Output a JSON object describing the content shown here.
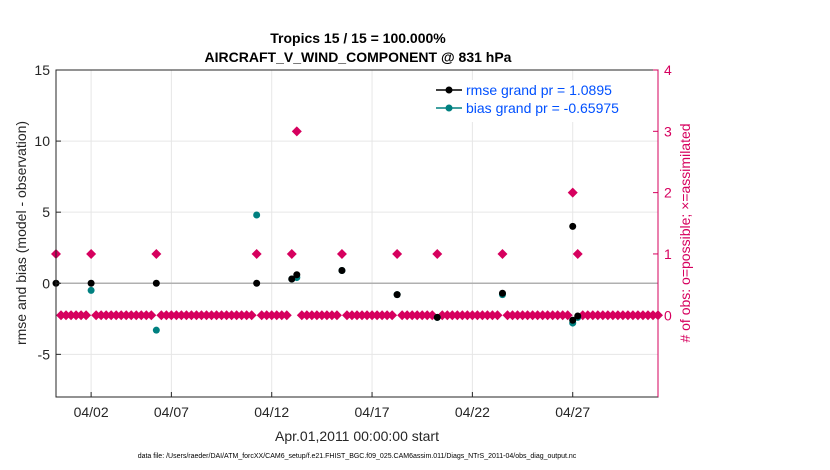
{
  "chart_data": {
    "type": "scatter",
    "title": "Tropics 15 / 15 = 100.000%",
    "subtitle": "AIRCRAFT_V_WIND_COMPONENT @ 831 hPa",
    "xlabel": "Apr.01,2011 00:00:00 start",
    "ylabel": "rmse and bias (model - observation)",
    "y2label": "# of obs: o=possible; ×=assimilated",
    "xlim": [
      0,
      30
    ],
    "ylim": [
      -8,
      15
    ],
    "y2lim": [
      -1.3333,
      4
    ],
    "x_ticks": [
      1.75,
      5.75,
      10.75,
      15.75,
      20.75,
      25.75
    ],
    "x_tick_labels": [
      "04/02",
      "04/07",
      "04/12",
      "04/17",
      "04/22",
      "04/27"
    ],
    "y_ticks": [
      -5,
      0,
      5,
      10,
      15
    ],
    "y_tick_labels": [
      "-5",
      "0",
      "5",
      "10",
      "15"
    ],
    "y2_ticks": [
      0,
      1,
      2,
      3,
      4
    ],
    "y2_tick_labels": [
      "0",
      "1",
      "2",
      "3",
      "4"
    ],
    "legend": [
      {
        "name": "rmse grand pr = 1.0895",
        "color": "#000000"
      },
      {
        "name": "bias grand pr = -0.65975",
        "color": "#008080"
      }
    ],
    "series": [
      {
        "name": "rmse",
        "color": "#000000",
        "points": [
          [
            0.0,
            0.0
          ],
          [
            1.75,
            0.0
          ],
          [
            5.0,
            0.0
          ],
          [
            10.0,
            0.0
          ],
          [
            11.75,
            0.3
          ],
          [
            12.0,
            0.6
          ],
          [
            14.25,
            0.9
          ],
          [
            17.0,
            -0.8
          ],
          [
            19.0,
            -2.4
          ],
          [
            22.25,
            -0.7
          ],
          [
            25.75,
            4.0
          ],
          [
            25.75,
            -2.6
          ],
          [
            26.0,
            -2.3
          ]
        ]
      },
      {
        "name": "bias",
        "color": "#008080",
        "points": [
          [
            1.75,
            -0.5
          ],
          [
            5.0,
            -3.3
          ],
          [
            10.0,
            4.8
          ],
          [
            11.75,
            0.3
          ],
          [
            12.0,
            0.4
          ],
          [
            14.25,
            0.9
          ],
          [
            17.0,
            -0.8
          ],
          [
            19.0,
            -2.4
          ],
          [
            22.25,
            -0.8
          ],
          [
            25.75,
            -2.8
          ],
          [
            26.0,
            -2.4
          ]
        ]
      },
      {
        "name": "obs possible",
        "color": "#d6005e",
        "points_count_units": [
          [
            0.0,
            1
          ],
          [
            1.75,
            1
          ],
          [
            5.0,
            1
          ],
          [
            10.0,
            1
          ],
          [
            11.75,
            1
          ],
          [
            12.0,
            3
          ],
          [
            14.25,
            1
          ],
          [
            17.0,
            1
          ],
          [
            19.0,
            1
          ],
          [
            22.25,
            1
          ],
          [
            25.75,
            2
          ],
          [
            26.0,
            1
          ]
        ]
      }
    ],
    "zero_count_days": "0.0 to 30.0 every 0.25 day except where obs present",
    "footer": "data file: /Users/raeder/DAI/ATM_forcXX/CAM6_setup/f.e21.FHIST_BGC.f09_025.CAM6assim.011/Diags_NTrS_2011-04/obs_diag_output.nc"
  }
}
